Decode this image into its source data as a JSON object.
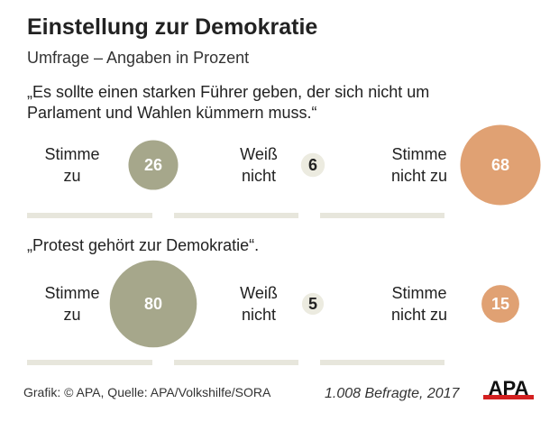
{
  "chart_data": {
    "type": "bubble",
    "title": "Einstellung zur Demokratie",
    "subtitle": "Umfrage – Angaben in Prozent",
    "categories": [
      [
        "Stimme",
        "zu"
      ],
      [
        "Weiß",
        "nicht"
      ],
      [
        "Stimme",
        "nicht zu"
      ]
    ],
    "questions": [
      {
        "text": [
          "„Es sollte einen starken Führer geben, der sich nicht um",
          "Parlament und Wahlen kümmern muss.“"
        ],
        "values": [
          26,
          6,
          68
        ]
      },
      {
        "text": [
          "„Protest gehört zur Demokratie“."
        ],
        "values": [
          80,
          5,
          15
        ]
      }
    ],
    "colors": {
      "agree": "#a6a78b",
      "unknown": "#ecebe0",
      "disagree": "#e0a173",
      "bar": "#e7e6dc"
    }
  },
  "footer": {
    "source": "Grafik: © APA, Quelle: APA/Volkshilfe/SORA",
    "sample": "1.008 Befragte, 2017",
    "logo": "APA"
  }
}
